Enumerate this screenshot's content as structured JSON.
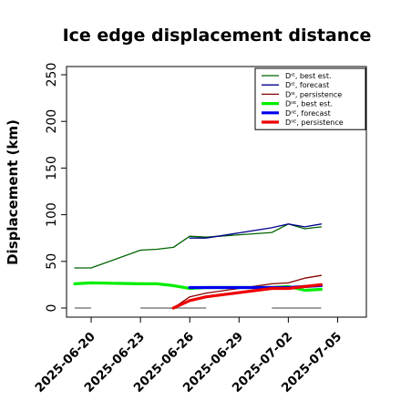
{
  "chart_data": {
    "type": "line",
    "title": "Ice edge displacement distance",
    "xlabel": "",
    "ylabel": "Displacement (km)",
    "ylim": [
      0,
      250
    ],
    "yticks": [
      0,
      50,
      100,
      150,
      200,
      250
    ],
    "xlim": [
      "2025-06-18T12:00",
      "2025-07-06T18:00"
    ],
    "xticks": [
      "2025-06-20",
      "2025-06-23",
      "2025-06-26",
      "2025-06-29",
      "2025-07-02",
      "2025-07-05"
    ],
    "highlight_tick": "2025-06-26",
    "highlight_color": "#1a8a1a",
    "legend_position": "top-right",
    "series": [
      {
        "name": "Dᴵᴱ, best est.",
        "color": "#006400",
        "width": 1.3,
        "points": [
          [
            "2025-06-19T00:00",
            43
          ],
          [
            "2025-06-20T00:00",
            43
          ],
          [
            "2025-06-23T00:00",
            62
          ],
          [
            "2025-06-24T00:00",
            63
          ],
          [
            "2025-06-25T00:00",
            65
          ],
          [
            "2025-06-26T00:00",
            77
          ],
          [
            "2025-06-27T00:00",
            76
          ],
          [
            "2025-07-01T00:00",
            81
          ],
          [
            "2025-07-02T00:00",
            90
          ],
          [
            "2025-07-03T00:00",
            85
          ],
          [
            "2025-07-04T00:00",
            87
          ]
        ]
      },
      {
        "name": "Dᴵᴱ, forecast",
        "color": "#00008b",
        "width": 1.3,
        "points": [
          [
            "2025-06-26T00:00",
            75
          ],
          [
            "2025-06-27T00:00",
            75
          ],
          [
            "2025-07-01T00:00",
            86
          ],
          [
            "2025-07-02T00:00",
            90
          ],
          [
            "2025-07-03T00:00",
            87
          ],
          [
            "2025-07-04T00:00",
            90
          ]
        ]
      },
      {
        "name": "Dᴵᴱ, persistence",
        "color": "#8b0000",
        "width": 1.3,
        "points": [
          [
            "2025-06-25T00:00",
            0
          ],
          [
            "2025-06-26T00:00",
            12
          ],
          [
            "2025-06-27T00:00",
            16
          ],
          [
            "2025-07-01T00:00",
            26
          ],
          [
            "2025-07-02T00:00",
            27
          ],
          [
            "2025-07-03T00:00",
            32
          ],
          [
            "2025-07-04T00:00",
            35
          ]
        ]
      },
      {
        "name": "Dᴵᴵᴱ, best est.",
        "color": "#00ee00",
        "width": 3.2,
        "points": [
          [
            "2025-06-19T00:00",
            26
          ],
          [
            "2025-06-20T00:00",
            27
          ],
          [
            "2025-06-23T00:00",
            26
          ],
          [
            "2025-06-24T00:00",
            26
          ],
          [
            "2025-06-25T00:00",
            24
          ],
          [
            "2025-06-26T00:00",
            21
          ],
          [
            "2025-06-27T00:00",
            22
          ],
          [
            "2025-07-01T00:00",
            22
          ],
          [
            "2025-07-02T00:00",
            23
          ],
          [
            "2025-07-03T00:00",
            19
          ],
          [
            "2025-07-04T00:00",
            20
          ]
        ]
      },
      {
        "name": "Dᴵᴵᴱ, forecast",
        "color": "#0000ee",
        "width": 3.2,
        "points": [
          [
            "2025-06-26T00:00",
            22
          ],
          [
            "2025-06-27T00:00",
            22
          ],
          [
            "2025-07-01T00:00",
            22
          ],
          [
            "2025-07-02T00:00",
            22
          ],
          [
            "2025-07-03T00:00",
            23
          ],
          [
            "2025-07-04T00:00",
            24
          ]
        ]
      },
      {
        "name": "Dᴵᴵᴱ, persistence",
        "color": "#ee0000",
        "width": 3.2,
        "points": [
          [
            "2025-06-25T00:00",
            0
          ],
          [
            "2025-06-26T00:00",
            8
          ],
          [
            "2025-06-27T00:00",
            12
          ],
          [
            "2025-07-01T00:00",
            21
          ],
          [
            "2025-07-02T00:00",
            21
          ],
          [
            "2025-07-03T00:00",
            23
          ],
          [
            "2025-07-04T00:00",
            25
          ]
        ]
      }
    ],
    "zero_segments": {
      "color": "#808080",
      "ranges": [
        [
          "2025-06-19T00:00",
          "2025-06-20T00:00"
        ],
        [
          "2025-06-23T00:00",
          "2025-06-27T00:00"
        ],
        [
          "2025-07-01T00:00",
          "2025-07-04T00:00"
        ]
      ]
    }
  }
}
